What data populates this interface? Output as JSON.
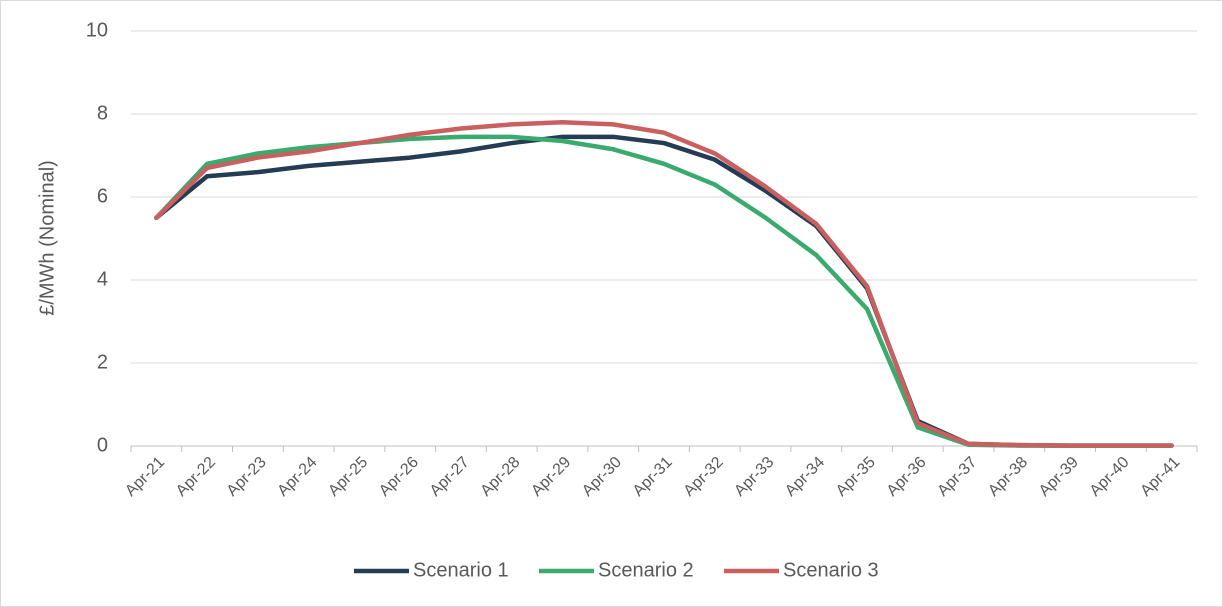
{
  "chart_data": {
    "type": "line",
    "y_label": "£/MWh (Nominal)",
    "categories": [
      "Apr-21",
      "Apr-22",
      "Apr-23",
      "Apr-24",
      "Apr-25",
      "Apr-26",
      "Apr-27",
      "Apr-28",
      "Apr-29",
      "Apr-30",
      "Apr-31",
      "Apr-32",
      "Apr-33",
      "Apr-34",
      "Apr-35",
      "Apr-36",
      "Apr-37",
      "Apr-38",
      "Apr-39",
      "Apr-40",
      "Apr-41"
    ],
    "series": [
      {
        "name": "Scenario 1",
        "color": "#243c54",
        "values": [
          5.5,
          6.5,
          6.6,
          6.75,
          6.85,
          6.95,
          7.1,
          7.3,
          7.45,
          7.45,
          7.3,
          6.9,
          6.15,
          5.3,
          3.8,
          0.6,
          0.05,
          0.02,
          0.01,
          0.01,
          0.01
        ]
      },
      {
        "name": "Scenario 2",
        "color": "#3aaa6e",
        "values": [
          5.5,
          6.8,
          7.05,
          7.2,
          7.3,
          7.4,
          7.45,
          7.45,
          7.35,
          7.15,
          6.8,
          6.3,
          5.5,
          4.6,
          3.3,
          0.45,
          0.03,
          0.01,
          0.01,
          0.01,
          0.01
        ]
      },
      {
        "name": "Scenario 3",
        "color": "#c9605f",
        "values": [
          5.5,
          6.7,
          6.95,
          7.1,
          7.3,
          7.5,
          7.65,
          7.75,
          7.8,
          7.75,
          7.55,
          7.05,
          6.25,
          5.35,
          3.85,
          0.55,
          0.05,
          0.02,
          0.01,
          0.01,
          0.01
        ]
      }
    ],
    "ylim": [
      0,
      10
    ],
    "yticks": [
      0,
      2,
      4,
      6,
      8,
      10
    ],
    "grid": true,
    "legend": "bottom"
  }
}
